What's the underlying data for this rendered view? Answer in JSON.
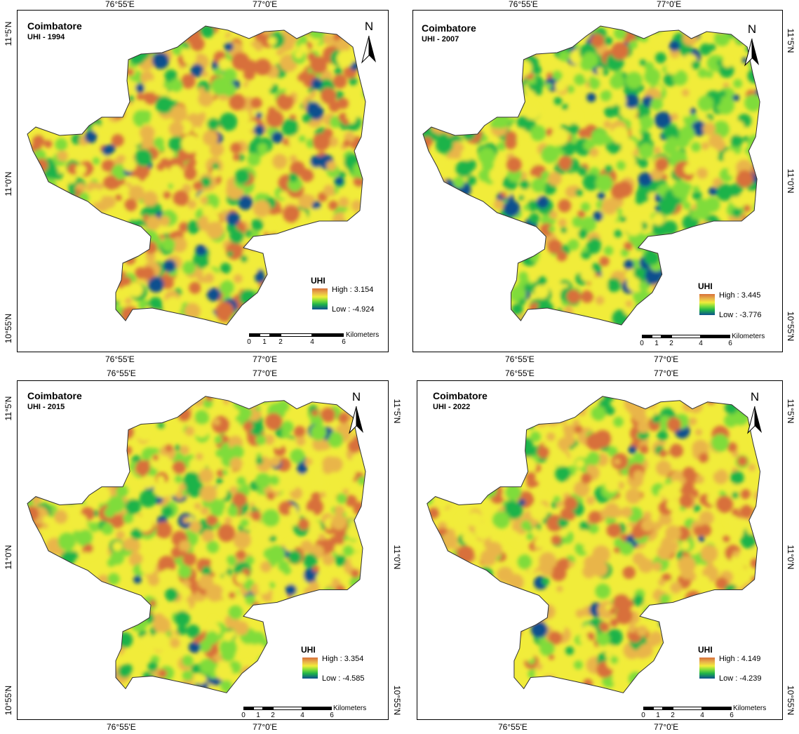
{
  "maps": [
    {
      "title": "Coimbatore",
      "subtitle": "UHI - 1994",
      "legend": {
        "title": "UHI",
        "high": "High : 3.154",
        "low": "Low : -4.924"
      },
      "dominant": "warm-mixed"
    },
    {
      "title": "Coimbatore",
      "subtitle": "UHI - 2007",
      "legend": {
        "title": "UHI",
        "high": "High : 3.445",
        "low": "Low : -3.776"
      },
      "dominant": "green"
    },
    {
      "title": "Coimbatore",
      "subtitle": "UHI - 2015",
      "legend": {
        "title": "UHI",
        "high": "High : 3.354",
        "low": "Low : -4.585"
      },
      "dominant": "yellow-mixed"
    },
    {
      "title": "Coimbatore",
      "subtitle": "UHI - 2022",
      "legend": {
        "title": "UHI",
        "high": "High : 4.149",
        "low": "Low : -4.239"
      },
      "dominant": "warm"
    }
  ],
  "axes": {
    "lon_left": "76°55'E",
    "lon_right": "77°0'E",
    "lat_top": "11°5'N",
    "lat_mid": "11°0'N",
    "lat_bottom": "10°55'N"
  },
  "north_label": "N",
  "scalebar": {
    "unit": "Kilometers",
    "labels": [
      "0",
      "1",
      "2",
      "4",
      "6"
    ]
  },
  "colors": {
    "high": "#d8703a",
    "orange": "#e9b54a",
    "yellow": "#f1ec3a",
    "lightgreen": "#7fdc3a",
    "green": "#1fb34a",
    "low": "#0e4f8e"
  }
}
